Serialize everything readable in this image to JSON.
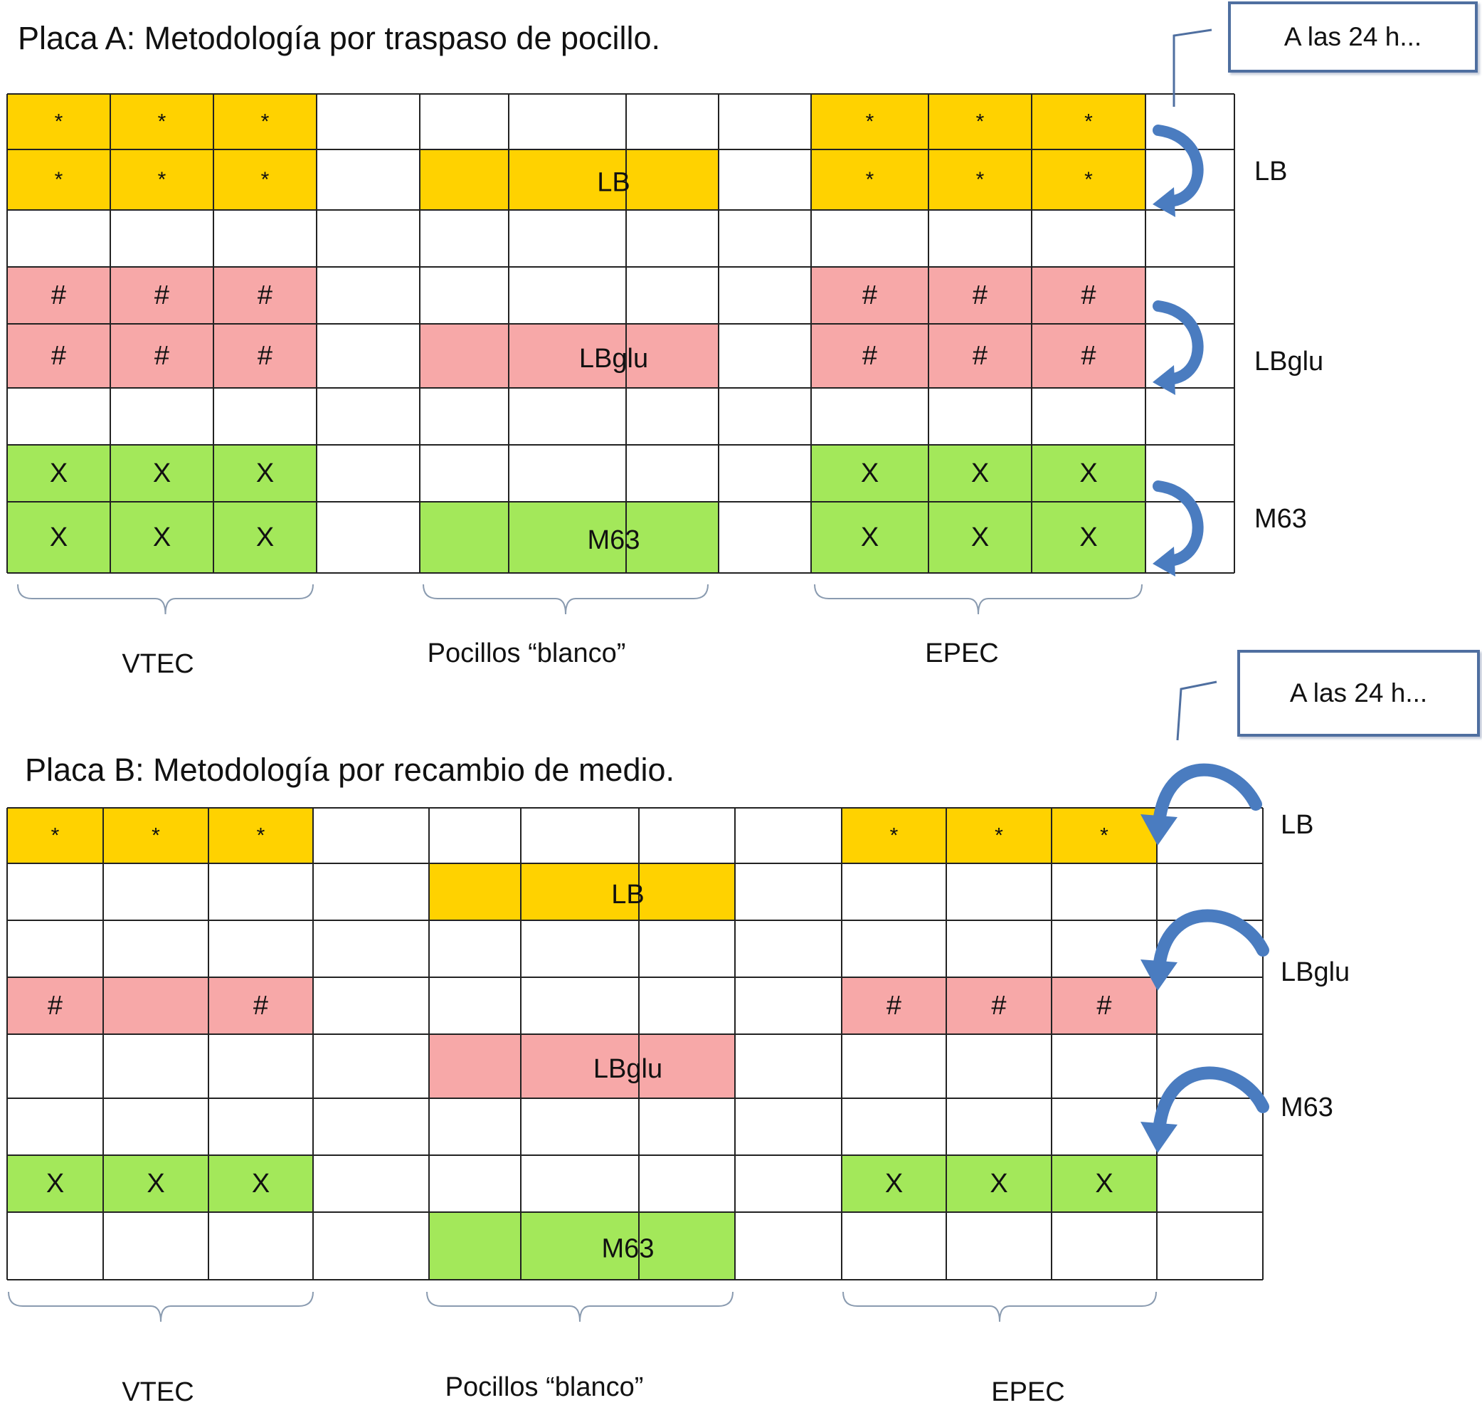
{
  "plate_a": {
    "title": "Placa A: Metodología por traspaso de pocillo.",
    "note": "A las 24 h...",
    "rows": [
      "LB",
      "LBglu",
      "M63"
    ],
    "blank_labels": [
      "LB",
      "LBglu",
      "M63"
    ],
    "groups": [
      "VTEC",
      "Pocillos “blanco”",
      "EPEC"
    ]
  },
  "plate_b": {
    "title": "Placa B: Metodología por recambio de medio.",
    "note": "A las 24 h...",
    "rows": [
      "LB",
      "LBglu",
      "M63"
    ],
    "blank_labels": [
      "LB",
      "LBglu",
      "M63"
    ],
    "groups": [
      "VTEC",
      "Pocillos “blanco”",
      "EPEC"
    ]
  },
  "marks": {
    "lb": "*",
    "lbglu": "#",
    "m63": "X"
  },
  "colors": {
    "lb": "#ffd200",
    "lbglu": "#f7a8a8",
    "m63": "#a3e85a",
    "grid": "#222222",
    "arrow": "#4a7cc0",
    "note_border": "#4f6fa0",
    "brace": "#8a9bb0"
  }
}
